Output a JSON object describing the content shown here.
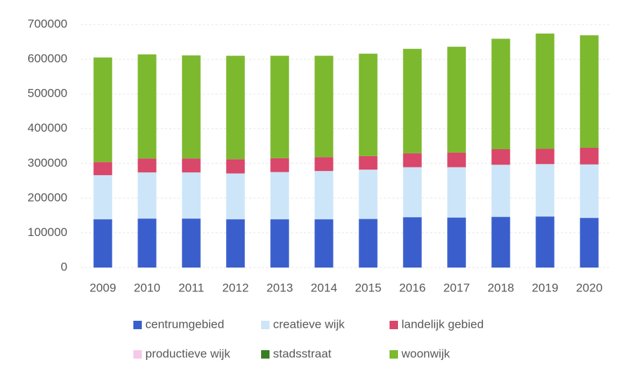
{
  "chart_data": {
    "type": "stacked_bar",
    "categories": [
      "2009",
      "2010",
      "2011",
      "2012",
      "2013",
      "2014",
      "2015",
      "2016",
      "2017",
      "2018",
      "2019",
      "2020"
    ],
    "series": [
      {
        "name": "centrumgebied",
        "color": "#3a5fcd",
        "values": [
          139000,
          141000,
          141000,
          139000,
          139000,
          139000,
          140000,
          145000,
          144000,
          146000,
          147000,
          143000
        ]
      },
      {
        "name": "creatieve wijk",
        "color": "#cde5f8",
        "values": [
          127000,
          133000,
          133000,
          132000,
          136000,
          139000,
          142000,
          144000,
          145000,
          150000,
          151000,
          154000
        ]
      },
      {
        "name": "landelijk gebied",
        "color": "#d9476a",
        "values": [
          38000,
          40000,
          40000,
          41000,
          40000,
          40000,
          39000,
          40000,
          42000,
          45000,
          44000,
          48000
        ]
      },
      {
        "name": "productieve wijk",
        "color": "#f6c8ea",
        "values": [
          0,
          0,
          0,
          0,
          0,
          0,
          0,
          0,
          0,
          0,
          0,
          0
        ]
      },
      {
        "name": "stadsstraat",
        "color": "#3a7d22",
        "values": [
          0,
          0,
          0,
          0,
          0,
          0,
          0,
          0,
          0,
          0,
          0,
          0
        ]
      },
      {
        "name": "woonwijk",
        "color": "#7cb92e",
        "values": [
          301000,
          300000,
          297000,
          298000,
          295000,
          292000,
          295000,
          301000,
          305000,
          318000,
          332000,
          324000
        ]
      }
    ],
    "ylim": [
      0,
      700000
    ],
    "yticks": [
      0,
      100000,
      200000,
      300000,
      400000,
      500000,
      600000,
      700000
    ],
    "grid": true,
    "legend": "bottom"
  }
}
